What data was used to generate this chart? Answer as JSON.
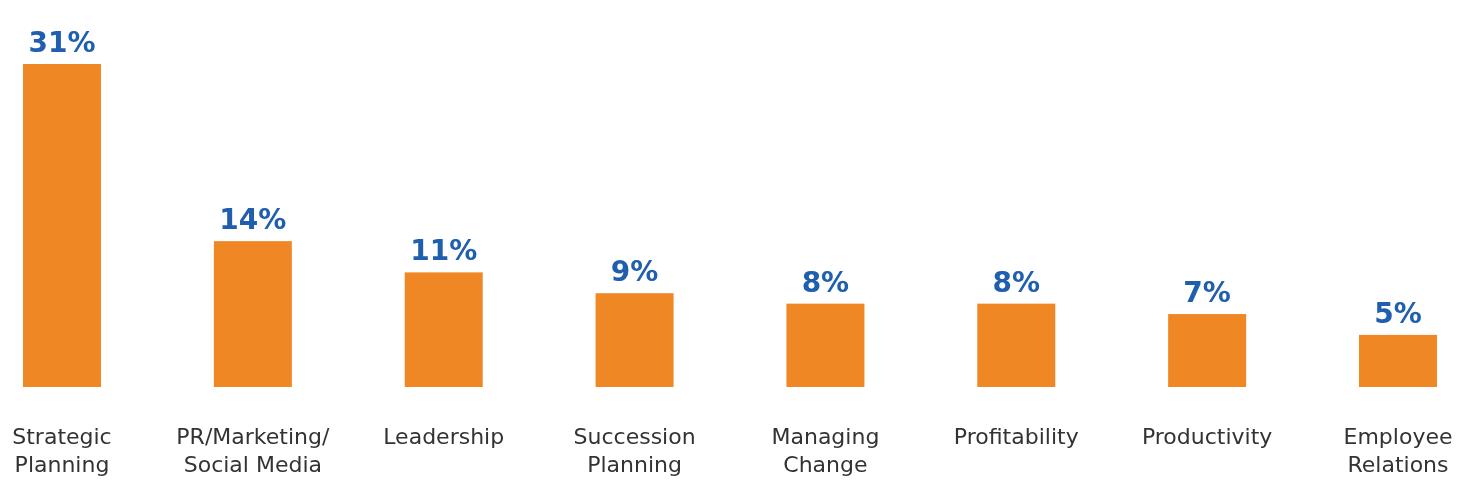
{
  "chart_data": {
    "type": "bar",
    "categories": [
      "Strategic Planning",
      "PR/Marketing/Social Media",
      "Leadership",
      "Succession Planning",
      "Managing Change",
      "Profitability",
      "Productivity",
      "Employee Relations"
    ],
    "values": [
      31,
      14,
      11,
      9,
      8,
      8,
      7,
      5
    ],
    "value_labels": [
      "31%",
      "14%",
      "11%",
      "9%",
      "8%",
      "8%",
      "7%",
      "5%"
    ],
    "color": "#f08725"
  }
}
